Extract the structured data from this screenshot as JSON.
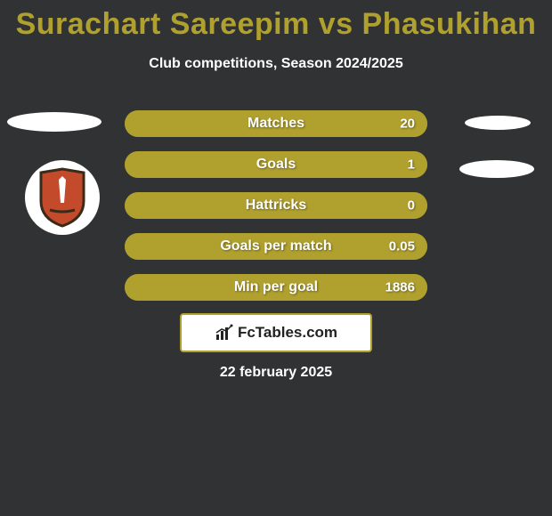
{
  "colors": {
    "background": "#303234",
    "title": "#b0a02e",
    "subtitle": "#ffffff",
    "oval": "#ffffff",
    "bar_bg": "#7e7526",
    "bar_fill": "#b0a02e",
    "bar_text": "#ffffff",
    "logo_box_bg": "#ffffff",
    "logo_box_border": "#b0a02e",
    "logo_text": "#222222",
    "date_text": "#ffffff",
    "shield_fill": "#c34b2b",
    "shield_border": "#3a2a1a",
    "shield_inner": "#ffffff"
  },
  "title": "Surachart Sareepim vs Phasukihan",
  "subtitle": "Club competitions, Season 2024/2025",
  "bars": [
    {
      "label": "Matches",
      "value": "20",
      "fill_pct": 100
    },
    {
      "label": "Goals",
      "value": "1",
      "fill_pct": 100
    },
    {
      "label": "Hattricks",
      "value": "0",
      "fill_pct": 100
    },
    {
      "label": "Goals per match",
      "value": "0.05",
      "fill_pct": 100
    },
    {
      "label": "Min per goal",
      "value": "1886",
      "fill_pct": 100
    }
  ],
  "logo": {
    "text": "FcTables.com"
  },
  "date": "22 february 2025"
}
